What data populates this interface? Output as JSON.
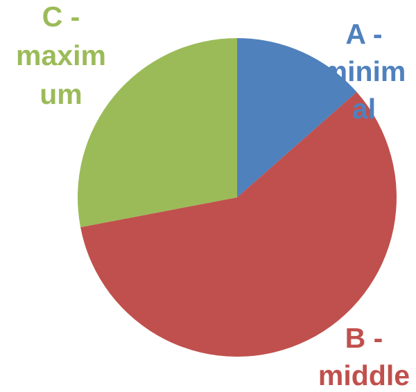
{
  "chart_data": {
    "type": "pie",
    "title": "",
    "start_angle_deg": 0,
    "direction": "clockwise",
    "slices": [
      {
        "label_lines": [
          "A -",
          "minim",
          "al"
        ],
        "value": 13.5,
        "color": "#4F81BD"
      },
      {
        "label_lines": [
          "B -",
          "middle"
        ],
        "value": 58.5,
        "color": "#C0504D"
      },
      {
        "label_lines": [
          "C -",
          "maxim",
          "um"
        ],
        "value": 28.0,
        "color": "#9BBB59"
      }
    ],
    "legend": "none",
    "labels_placement": "outside, colored by slice"
  }
}
